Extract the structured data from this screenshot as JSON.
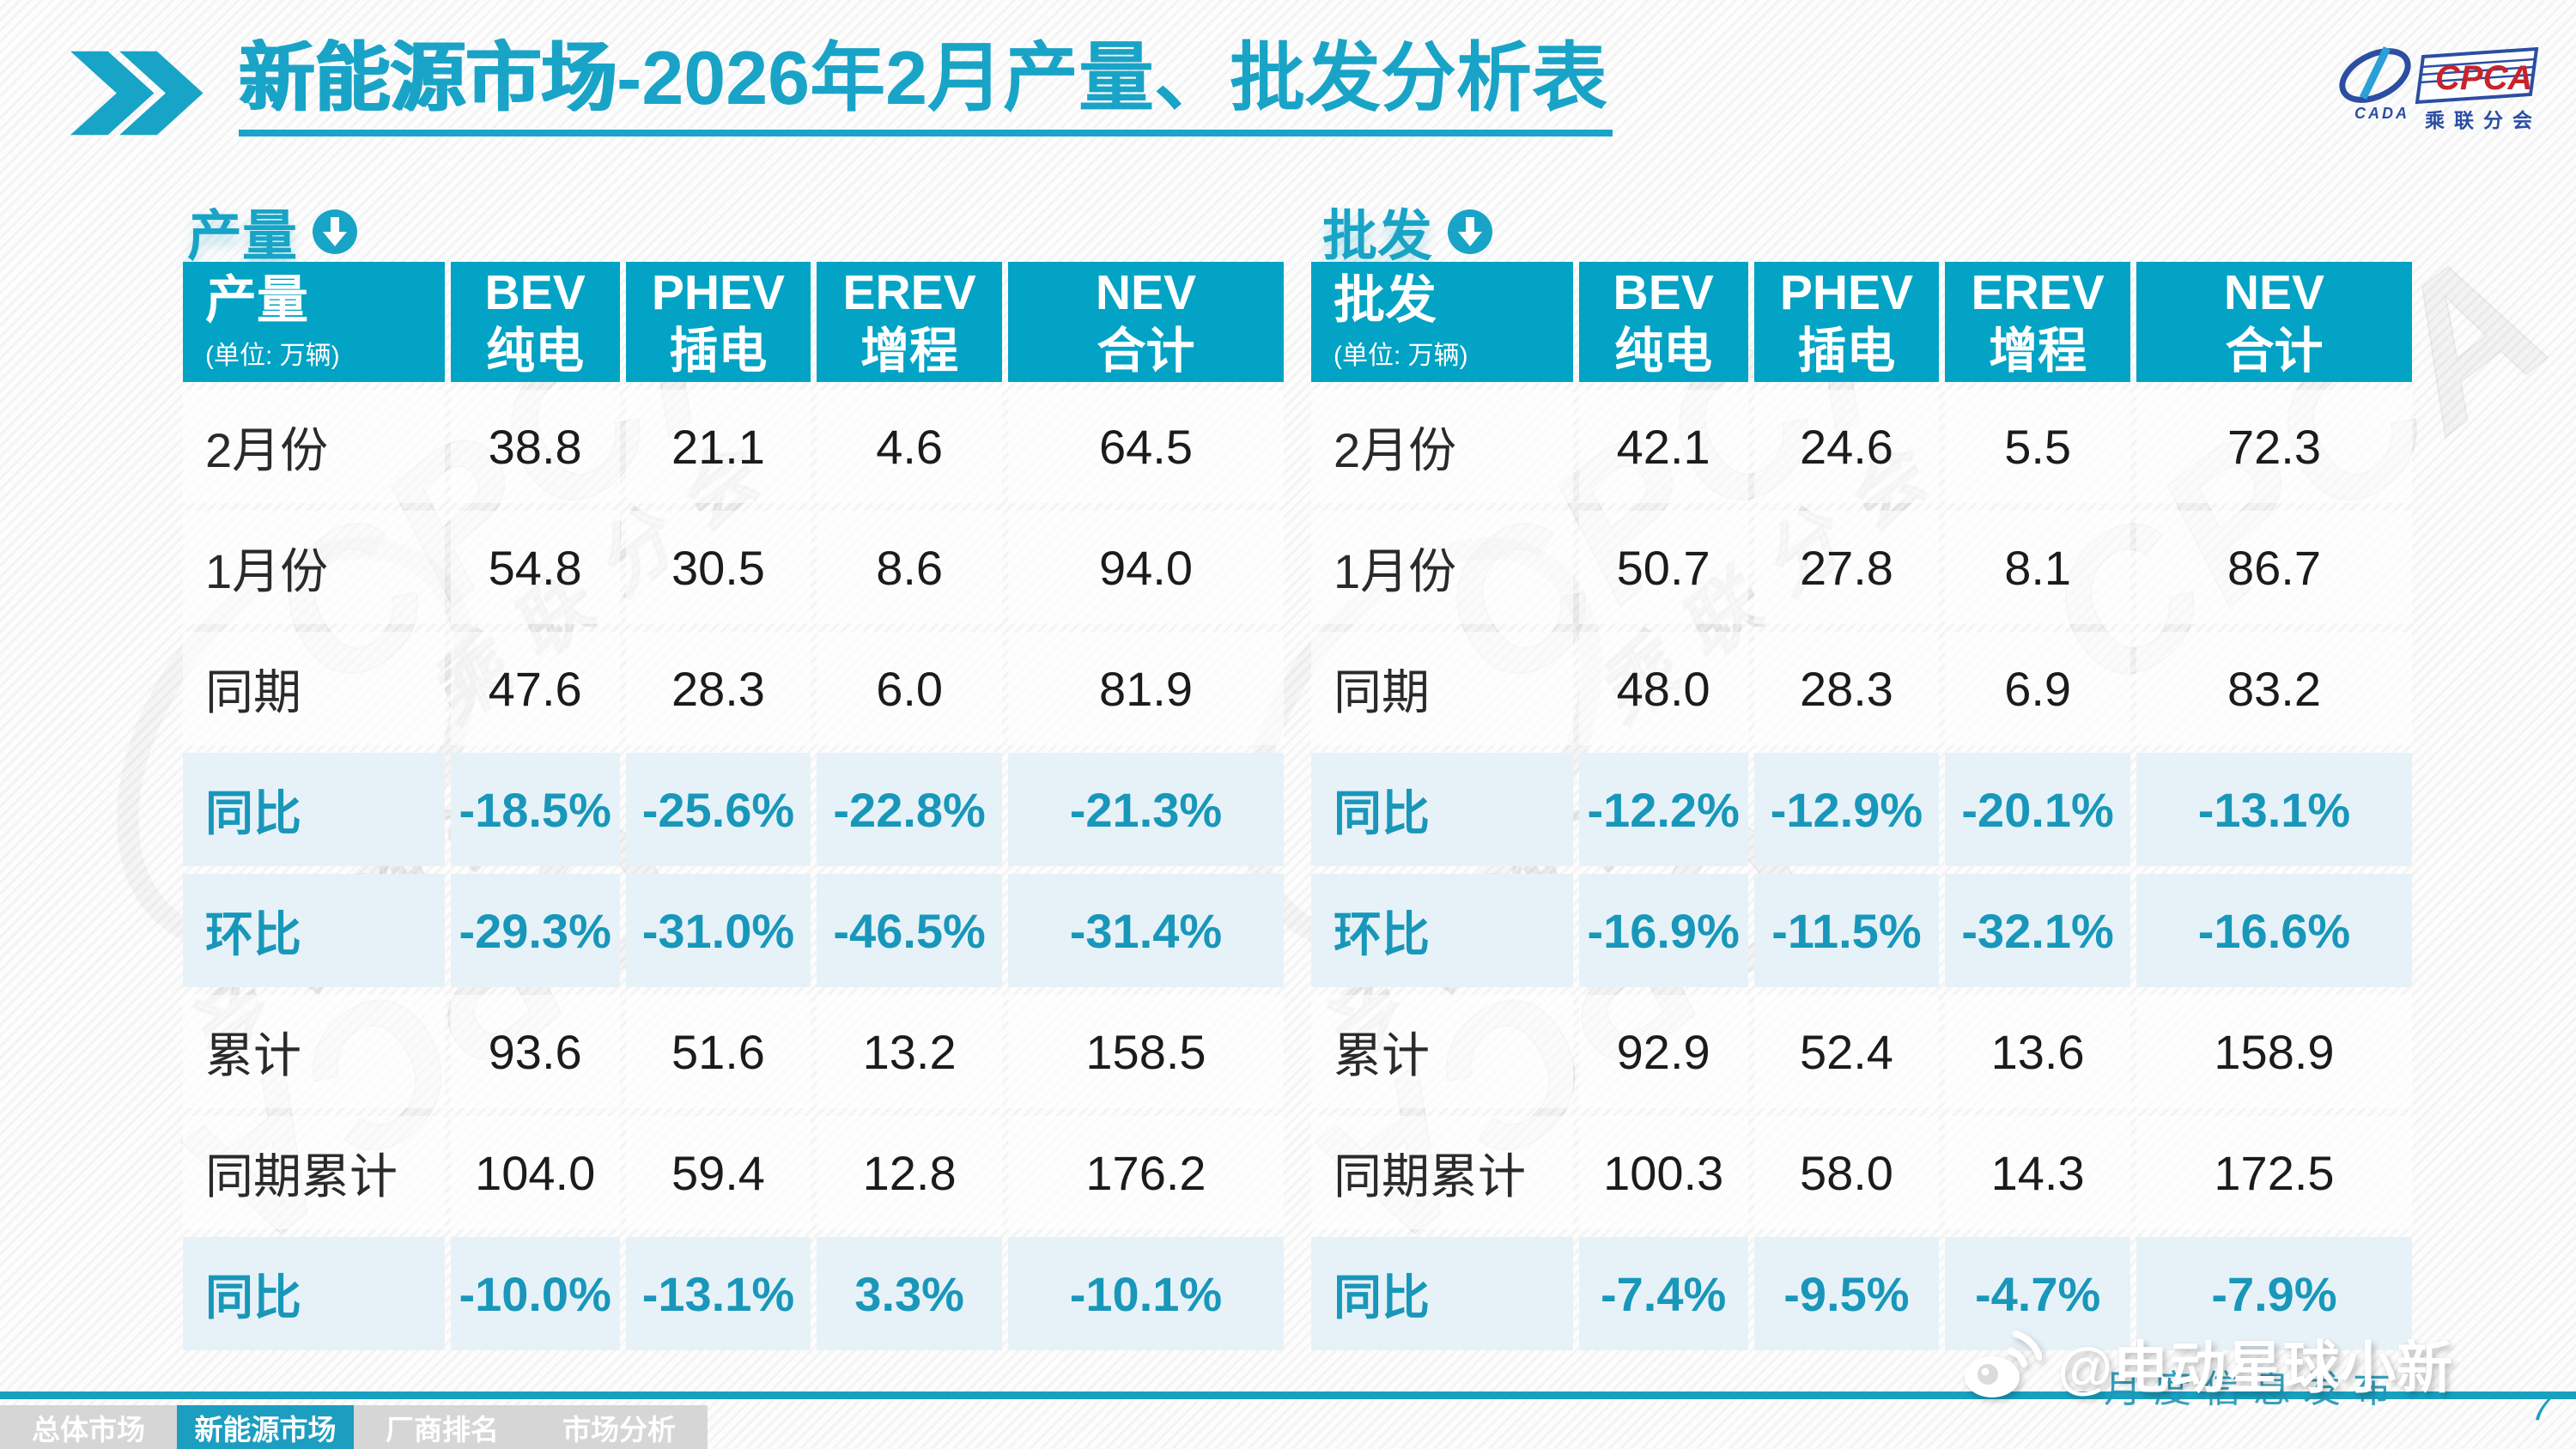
{
  "slide": {
    "title_prefix": "新能源市场",
    "title_suffix": "-2026年2月产量、批发分析表",
    "page_number": "7",
    "release_note": "月度信息发布",
    "weibo_handle": "@电动星球小新"
  },
  "logo": {
    "cpca": "CPCA",
    "branch": "乘联分会",
    "cada": "CADA"
  },
  "colors": {
    "teal_header": "#02a3c4",
    "teal_title": "#19a4c7",
    "teal_text": "#1897ba",
    "highlight_row": "#e7f2f8",
    "inactive_tab": "#d6d6d6",
    "active_tab": "#1c9ec0",
    "logo_red": "#c8232c",
    "logo_blue": "#2b4ea2"
  },
  "nav": {
    "tabs": [
      {
        "key": "overall-market",
        "label": "总体市场",
        "active": false
      },
      {
        "key": "nev-market",
        "label": "新能源市场",
        "active": true
      },
      {
        "key": "oem-ranking",
        "label": "厂商排名",
        "active": false
      },
      {
        "key": "market-analysis",
        "label": "市场分析",
        "active": false
      }
    ]
  },
  "tables": {
    "production": {
      "section_label": "产量",
      "corner_title": "产量",
      "corner_unit": "(单位: 万辆)",
      "col_widths": [
        "24.3%",
        "15.7%",
        "17.2%",
        "17.2%",
        "25.6%"
      ],
      "columns": [
        {
          "line1": "BEV",
          "line2": "纯电"
        },
        {
          "line1": "PHEV",
          "line2": "插电"
        },
        {
          "line1": "EREV",
          "line2": "增程"
        },
        {
          "line1": "NEV",
          "line2": "合计"
        }
      ],
      "rows": [
        {
          "label": "2月份",
          "values": [
            "38.8",
            "21.1",
            "4.6",
            "64.5"
          ],
          "highlight": false
        },
        {
          "label": "1月份",
          "values": [
            "54.8",
            "30.5",
            "8.6",
            "94.0"
          ],
          "highlight": false
        },
        {
          "label": "同期",
          "values": [
            "47.6",
            "28.3",
            "6.0",
            "81.9"
          ],
          "highlight": false
        },
        {
          "label": "同比",
          "values": [
            "-18.5%",
            "-25.6%",
            "-22.8%",
            "-21.3%"
          ],
          "highlight": true
        },
        {
          "label": "环比",
          "values": [
            "-29.3%",
            "-31.0%",
            "-46.5%",
            "-31.4%"
          ],
          "highlight": true
        },
        {
          "label": "累计",
          "values": [
            "93.6",
            "51.6",
            "13.2",
            "158.5"
          ],
          "highlight": false
        },
        {
          "label": "同期累计",
          "values": [
            "104.0",
            "59.4",
            "12.8",
            "176.2"
          ],
          "highlight": false
        },
        {
          "label": "同比",
          "values": [
            "-10.0%",
            "-13.1%",
            "3.3%",
            "-10.1%"
          ],
          "highlight": true
        }
      ]
    },
    "wholesale": {
      "section_label": "批发",
      "corner_title": "批发",
      "corner_unit": "(单位: 万辆)",
      "col_widths": [
        "24.3%",
        "15.7%",
        "17.2%",
        "17.2%",
        "25.6%"
      ],
      "columns": [
        {
          "line1": "BEV",
          "line2": "纯电"
        },
        {
          "line1": "PHEV",
          "line2": "插电"
        },
        {
          "line1": "EREV",
          "line2": "增程"
        },
        {
          "line1": "NEV",
          "line2": "合计"
        }
      ],
      "rows": [
        {
          "label": "2月份",
          "values": [
            "42.1",
            "24.6",
            "5.5",
            "72.3"
          ],
          "highlight": false
        },
        {
          "label": "1月份",
          "values": [
            "50.7",
            "27.8",
            "8.1",
            "86.7"
          ],
          "highlight": false
        },
        {
          "label": "同期",
          "values": [
            "48.0",
            "28.3",
            "6.9",
            "83.2"
          ],
          "highlight": false
        },
        {
          "label": "同比",
          "values": [
            "-12.2%",
            "-12.9%",
            "-20.1%",
            "-13.1%"
          ],
          "highlight": true
        },
        {
          "label": "环比",
          "values": [
            "-16.9%",
            "-11.5%",
            "-32.1%",
            "-16.6%"
          ],
          "highlight": true
        },
        {
          "label": "累计",
          "values": [
            "92.9",
            "52.4",
            "13.6",
            "158.9"
          ],
          "highlight": false
        },
        {
          "label": "同期累计",
          "values": [
            "100.3",
            "58.0",
            "14.3",
            "172.5"
          ],
          "highlight": false
        },
        {
          "label": "同比",
          "values": [
            "-7.4%",
            "-9.5%",
            "-4.7%",
            "-7.9%"
          ],
          "highlight": true
        }
      ]
    }
  },
  "watermark": {
    "ghost_text": "CPCA",
    "ghost_subtext": "乘联分会"
  }
}
